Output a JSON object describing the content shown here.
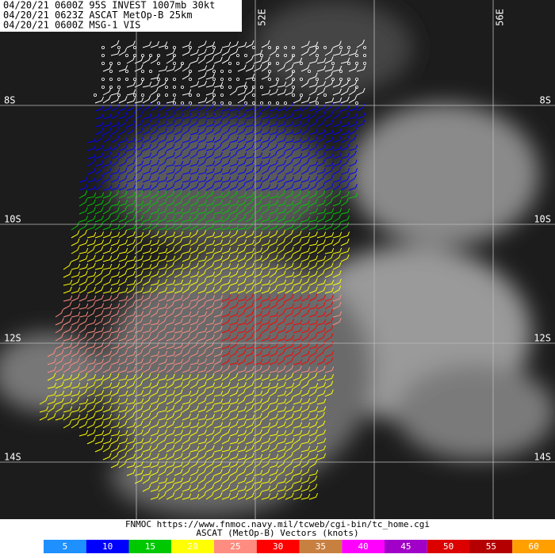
{
  "header": {
    "lines": [
      "04/20/21 0600Z  95S INVEST 1007mb 30kt",
      "04/20/21 0623Z  ASCAT MetOp-B 25km",
      "04/20/21 0600Z  MSG-1 VIS"
    ]
  },
  "map": {
    "lat_labels": [
      "8S",
      "10S",
      "12S",
      "14S"
    ],
    "lon_labels": [
      "52E",
      "56E"
    ]
  },
  "footer": {
    "source": "FNMOC https://www.fnmoc.navy.mil/tcweb/cgi-bin/tc_home.cgi",
    "caption": "ASCAT (MetOp-B) Vectors (knots)"
  },
  "legend": {
    "bins": [
      {
        "label": 5,
        "color": "#1e90ff"
      },
      {
        "label": 10,
        "color": "#0000ff"
      },
      {
        "label": 15,
        "color": "#00c800"
      },
      {
        "label": 20,
        "color": "#ffff00"
      },
      {
        "label": 25,
        "color": "#ff8c80"
      },
      {
        "label": 30,
        "color": "#ff0000"
      },
      {
        "label": 35,
        "color": "#c88040"
      },
      {
        "label": 40,
        "color": "#ff00ff"
      },
      {
        "label": 45,
        "color": "#a000c8"
      },
      {
        "label": 50,
        "color": "#dc0000"
      },
      {
        "label": 55,
        "color": "#b40000"
      },
      {
        "label": 60,
        "color": "#ffa000"
      }
    ]
  }
}
